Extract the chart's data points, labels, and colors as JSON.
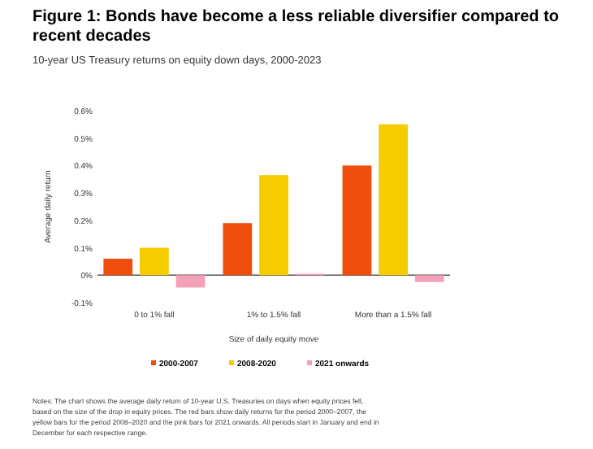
{
  "chart_data": {
    "type": "bar",
    "title": "Figure 1: Bonds have become a less reliable diversifier compared to recent decades",
    "subtitle": "10-year US Treasury returns on equity down days, 2000-2023",
    "xlabel": "Size of daily equity move",
    "ylabel": "Average daily return",
    "categories": [
      "0 to 1% fall",
      "1% to 1.5% fall",
      "More than a 1.5% fall"
    ],
    "series": [
      {
        "name": "2000-2007",
        "color": "#f04e0f",
        "values": [
          0.06,
          0.19,
          0.4
        ]
      },
      {
        "name": "2008-2020",
        "color": "#f5cc00",
        "values": [
          0.1,
          0.365,
          0.55
        ]
      },
      {
        "name": "2021 onwards",
        "color": "#f4a0b8",
        "values": [
          -0.045,
          0.005,
          -0.025
        ]
      }
    ],
    "ylim": [
      -0.1,
      0.6
    ],
    "yticks": [
      {
        "value": -0.1,
        "label": "-0.1%"
      },
      {
        "value": 0,
        "label": "0%"
      },
      {
        "value": 0.1,
        "label": "0.1%"
      },
      {
        "value": 0.2,
        "label": "0.2%"
      },
      {
        "value": 0.3,
        "label": "0.3%"
      },
      {
        "value": 0.4,
        "label": "0.4%"
      },
      {
        "value": 0.5,
        "label": "0.5%"
      },
      {
        "value": 0.6,
        "label": "0.6%"
      }
    ],
    "legend": "bottom",
    "annotations": [
      "Notes: The chart shows the average daily return of 10-year U.S. Treasuries on days when equity prices fell, based on the size of the drop in equity prices. The red bars show daily returns for the period 2000–2007, the yellow bars for the period 2008–2020 and the pink bars for 2021 onwards. All periods start in January and end in December for each respective range."
    ]
  }
}
